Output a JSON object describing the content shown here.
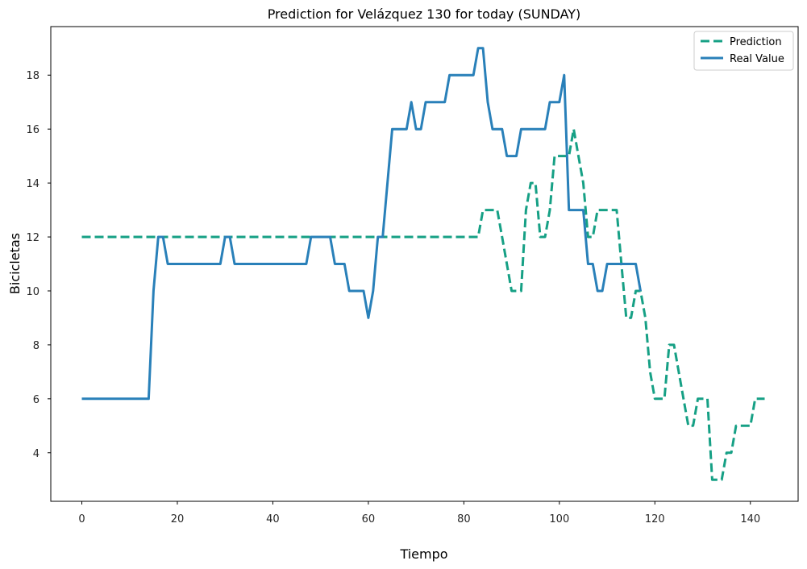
{
  "chart_data": {
    "type": "line",
    "title": "Prediction for Velázquez 130 for today (SUNDAY)",
    "xlabel": "Tiempo",
    "ylabel": "Bicicletas",
    "xlim": [
      -6.5,
      150
    ],
    "ylim": [
      2.2,
      19.8
    ],
    "xticks": [
      0,
      20,
      40,
      60,
      80,
      100,
      120,
      140
    ],
    "yticks": [
      4,
      6,
      8,
      10,
      12,
      14,
      16,
      18
    ],
    "grid": false,
    "legend_position": "top-right",
    "series": [
      {
        "name": "Prediction",
        "color": "#16a085",
        "style": "dashed",
        "x": [
          0,
          83,
          84,
          87,
          88,
          90,
          92,
          93,
          94,
          95,
          96,
          97,
          98,
          99,
          100,
          101,
          102,
          103,
          104,
          105,
          106,
          107,
          108,
          112,
          113,
          114,
          115,
          116,
          117,
          118,
          119,
          120,
          121,
          122,
          123,
          124,
          125,
          126,
          127,
          128,
          129,
          130,
          131,
          132,
          133,
          134,
          135,
          136,
          137,
          138,
          139,
          140,
          141,
          142,
          143
        ],
        "values": [
          12,
          12,
          13,
          13,
          12,
          10,
          10,
          13,
          14,
          14,
          12,
          12,
          13,
          15,
          15,
          15,
          15,
          16,
          15,
          14,
          12,
          12,
          13,
          13,
          11,
          9,
          9,
          10,
          10,
          9,
          7,
          6,
          6,
          6,
          8,
          8,
          7,
          6,
          5,
          5,
          6,
          6,
          6,
          3,
          3,
          3,
          4,
          4,
          5,
          5,
          5,
          5,
          6,
          6,
          6
        ]
      },
      {
        "name": "Real Value",
        "color": "#2980b9",
        "style": "solid",
        "x": [
          0,
          14,
          15,
          16,
          17,
          18,
          29,
          30,
          31,
          32,
          47,
          48,
          52,
          53,
          55,
          56,
          59,
          60,
          61,
          62,
          63,
          64,
          65,
          66,
          68,
          69,
          70,
          71,
          72,
          76,
          77,
          80,
          81,
          82,
          83,
          84,
          85,
          86,
          88,
          89,
          91,
          92,
          97,
          98,
          99,
          100,
          101,
          102,
          103,
          105,
          106,
          107,
          108,
          109,
          110,
          116,
          117
        ],
        "values": [
          6,
          6,
          10,
          12,
          12,
          11,
          11,
          12,
          12,
          11,
          11,
          12,
          12,
          11,
          11,
          10,
          10,
          9,
          10,
          12,
          12,
          14,
          16,
          16,
          16,
          17,
          16,
          16,
          17,
          17,
          18,
          18,
          18,
          18,
          19,
          19,
          17,
          16,
          16,
          15,
          15,
          16,
          16,
          17,
          17,
          17,
          18,
          13,
          13,
          13,
          11,
          11,
          10,
          10,
          11,
          11,
          10
        ]
      }
    ]
  }
}
